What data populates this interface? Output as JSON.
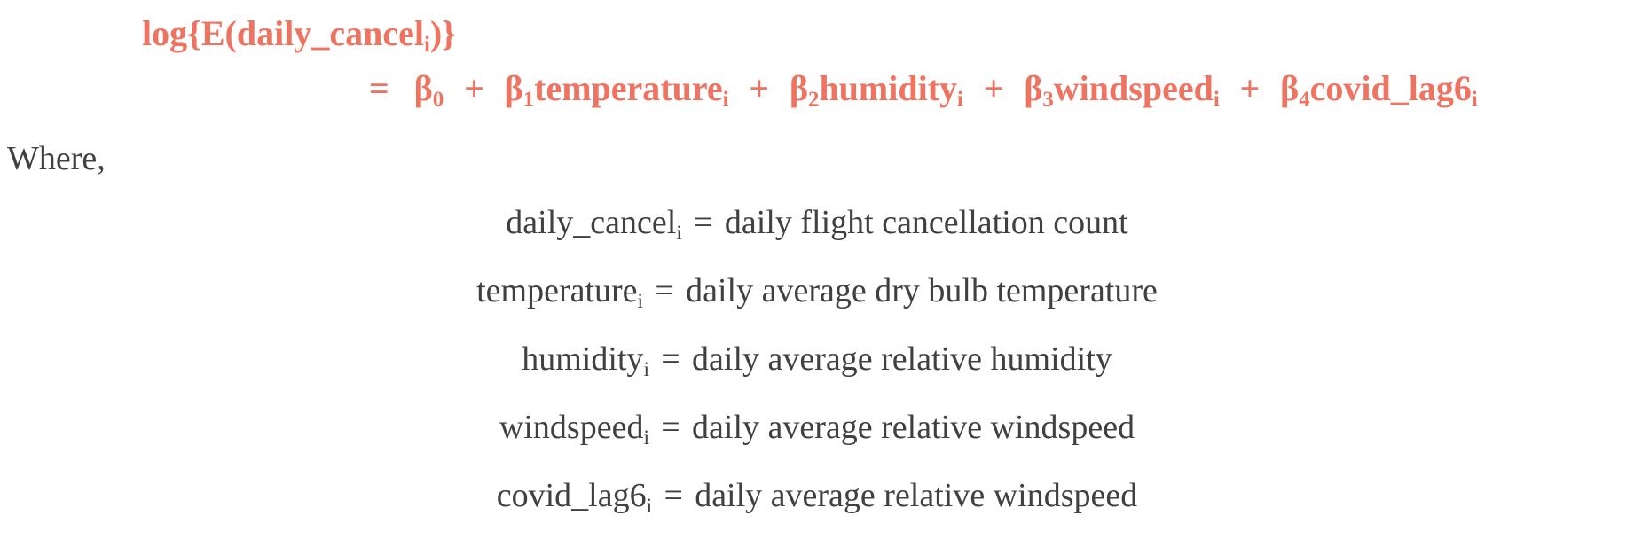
{
  "equation": {
    "lhs_func": "log{E(",
    "lhs_var": "daily_cancel",
    "lhs_sub": "i",
    "lhs_close": ")}",
    "equals": "=",
    "terms": [
      {
        "coef": "β",
        "coef_sub": "0",
        "var": "",
        "var_sub": ""
      },
      {
        "coef": "β",
        "coef_sub": "1",
        "var": "temperature",
        "var_sub": "i"
      },
      {
        "coef": "β",
        "coef_sub": "2",
        "var": "humidity",
        "var_sub": "i"
      },
      {
        "coef": "β",
        "coef_sub": "3",
        "var": "windspeed",
        "var_sub": "i"
      },
      {
        "coef": "β",
        "coef_sub": "4",
        "var": "covid_lag6",
        "var_sub": "i"
      }
    ],
    "plus": "+"
  },
  "where_label": "Where,",
  "definitions": [
    {
      "var": "daily_cancel",
      "sub": "i",
      "eq": "=",
      "desc": "daily flight cancellation count"
    },
    {
      "var": "temperature",
      "sub": "i",
      "eq": "=",
      "desc": "daily average dry bulb temperature"
    },
    {
      "var": "humidity",
      "sub": "i",
      "eq": "=",
      "desc": "daily average relative humidity"
    },
    {
      "var": "windspeed",
      "sub": "i",
      "eq": "=",
      "desc": "daily average relative windspeed"
    },
    {
      "var": "covid_lag6",
      "sub": "i",
      "eq": "=",
      "desc": "daily average relative windspeed"
    }
  ],
  "colors": {
    "equation": "#EE7361",
    "body_text": "#404040"
  }
}
